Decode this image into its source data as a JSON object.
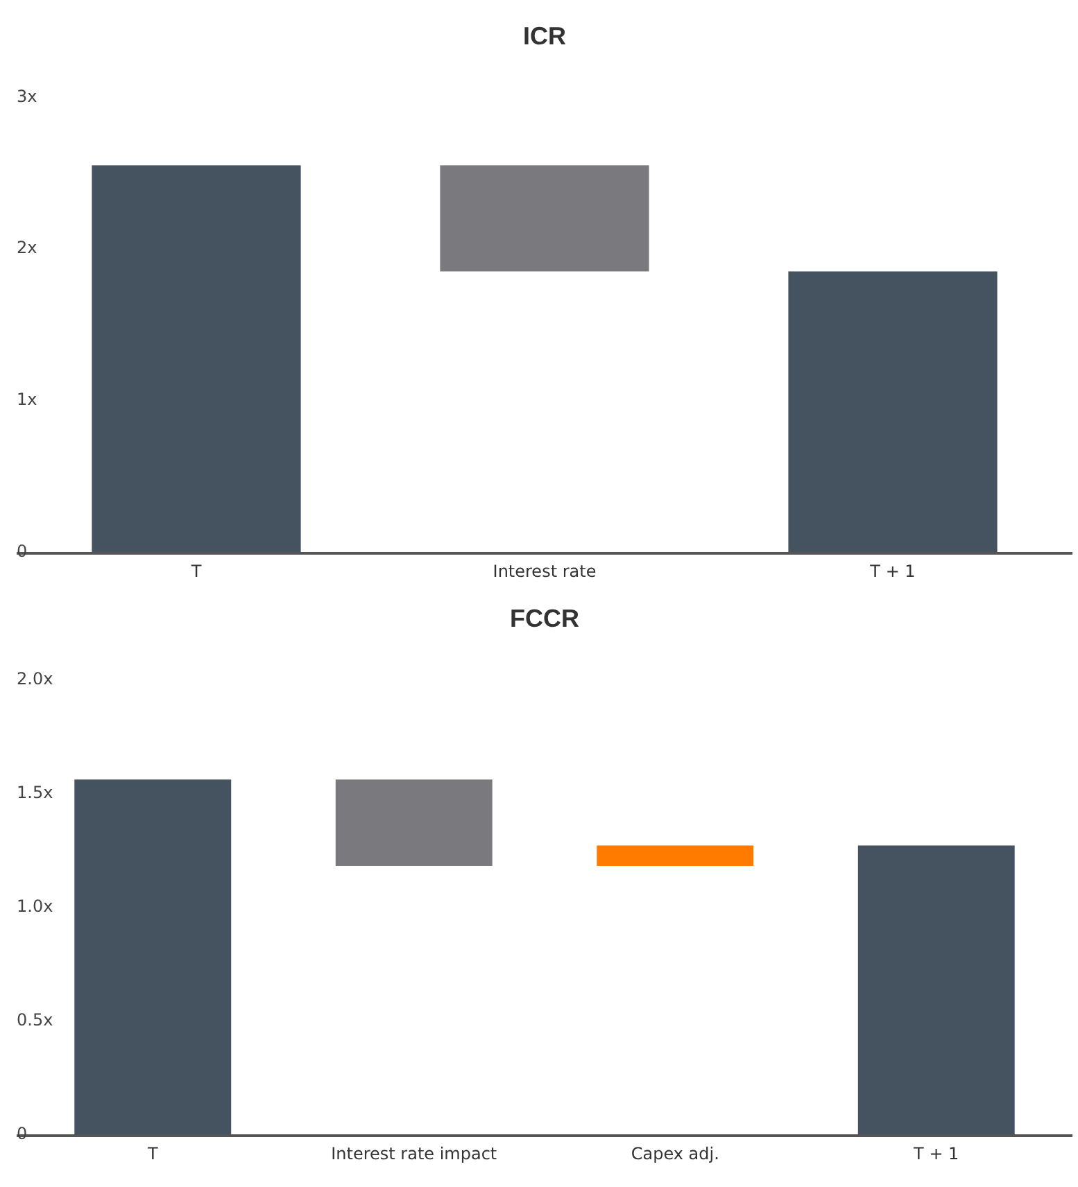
{
  "chart_data": [
    {
      "type": "bar",
      "title": "ICR",
      "categories": [
        "T",
        "Interest rate",
        "T + 1"
      ],
      "values": [
        2.55,
        0.7,
        1.85
      ],
      "base": [
        0,
        1.85,
        0
      ],
      "colors": [
        "#455361",
        "#7a7a7e",
        "#455361"
      ],
      "ylim": [
        0,
        3
      ],
      "yticks": [
        {
          "value": 0,
          "label": "0"
        },
        {
          "value": 1,
          "label": "1x"
        },
        {
          "value": 2,
          "label": "2x"
        },
        {
          "value": 3,
          "label": "3x"
        }
      ]
    },
    {
      "type": "bar",
      "title": "FCCR",
      "categories": [
        "T",
        "Interest rate impact",
        "Capex adj.",
        "T + 1"
      ],
      "values": [
        1.56,
        0.38,
        0.09,
        1.27
      ],
      "base": [
        0,
        1.18,
        1.18,
        0
      ],
      "colors": [
        "#455361",
        "#7a7a7e",
        "#ff7b00",
        "#455361"
      ],
      "ylim": [
        0,
        2
      ],
      "yticks": [
        {
          "value": 0,
          "label": "0"
        },
        {
          "value": 0.5,
          "label": "0.5x"
        },
        {
          "value": 1,
          "label": "1.0x"
        },
        {
          "value": 1.5,
          "label": "1.5x"
        },
        {
          "value": 2,
          "label": "2.0x"
        }
      ]
    }
  ]
}
